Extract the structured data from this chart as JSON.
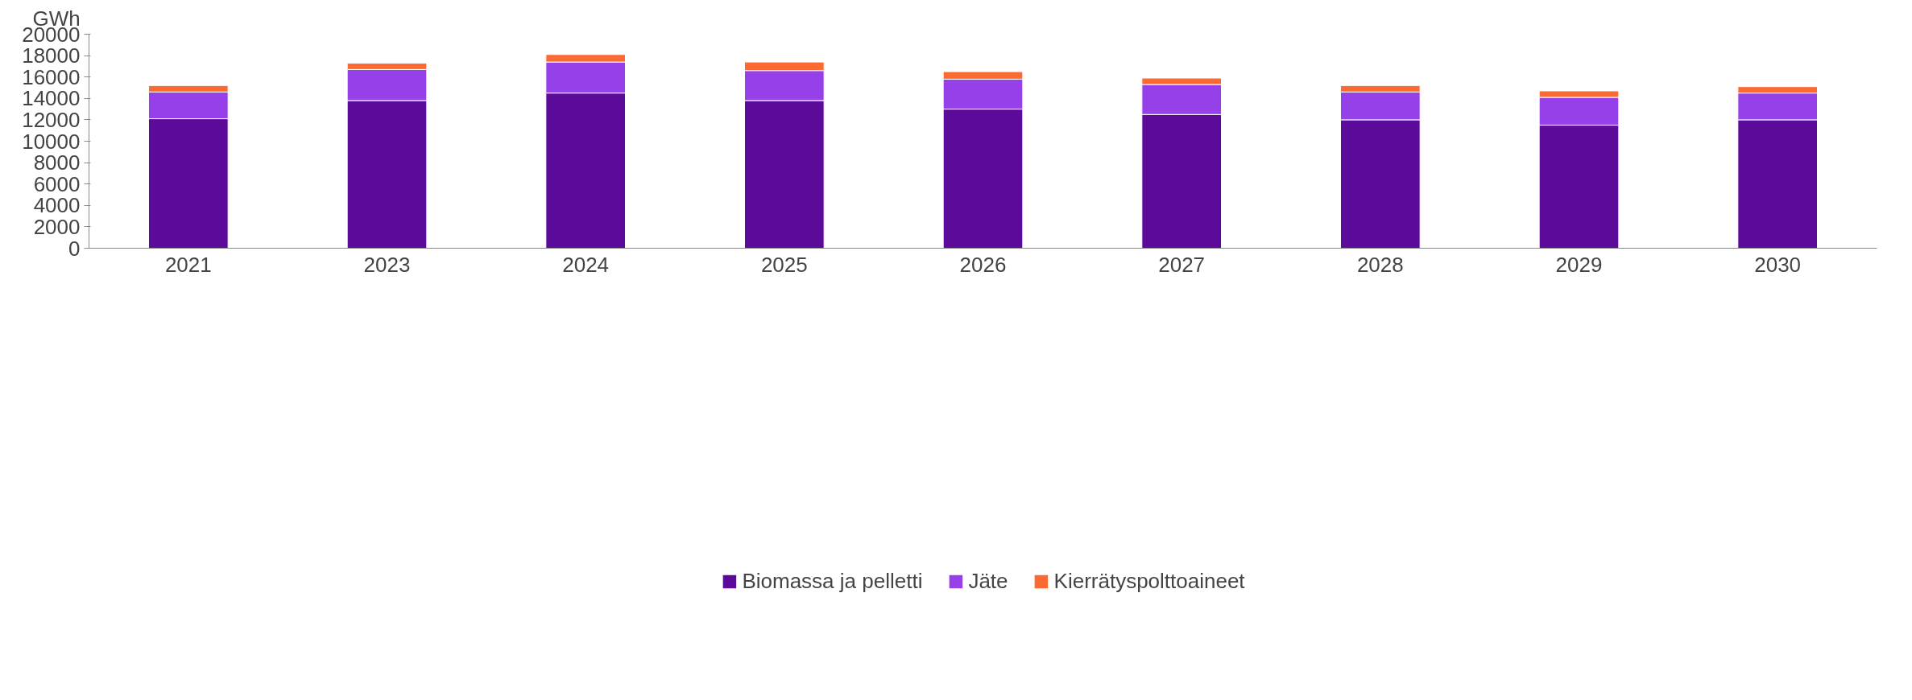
{
  "chart_data": {
    "type": "bar",
    "stacked": true,
    "ylabel": "GWh",
    "categories": [
      "2021",
      "2023",
      "2024",
      "2025",
      "2026",
      "2027",
      "2028",
      "2029",
      "2030"
    ],
    "series": [
      {
        "name": "Biomassa ja pelletti",
        "color": "#5b0a9a",
        "values": [
          12100,
          13800,
          14500,
          13800,
          13000,
          12500,
          12000,
          11500,
          12000
        ]
      },
      {
        "name": "Jäte",
        "color": "#9540e8",
        "values": [
          2500,
          2900,
          2900,
          2800,
          2800,
          2800,
          2600,
          2600,
          2500
        ]
      },
      {
        "name": "Kierrätyspolttoaineet",
        "color": "#fa6a32",
        "values": [
          600,
          600,
          700,
          800,
          700,
          600,
          600,
          600,
          600
        ]
      }
    ],
    "ylim": [
      0,
      20000
    ],
    "yticks": [
      0,
      2000,
      4000,
      6000,
      8000,
      10000,
      12000,
      14000,
      16000,
      18000,
      20000
    ],
    "grid": false,
    "legend": "bottom"
  }
}
